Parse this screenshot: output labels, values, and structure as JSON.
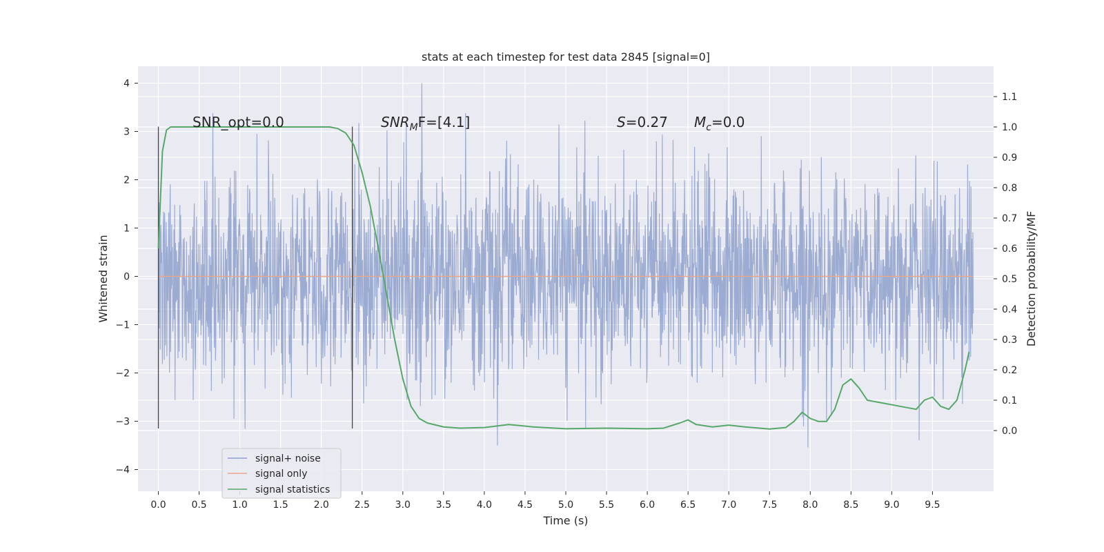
{
  "chart_data": {
    "type": "line",
    "title": "stats at each timestep for test data 2845 [signal=0]",
    "xlabel": "Time (s)",
    "ylabel_left": "Whitened strain",
    "ylabel_right": "Detection probability/MF",
    "xlim": [
      -0.25,
      10.25
    ],
    "ylim_left": [
      -4.45,
      4.35
    ],
    "ylim_right": [
      -0.2,
      1.2
    ],
    "x_ticks": [
      "0.0",
      "0.5",
      "1.0",
      "1.5",
      "2.0",
      "2.5",
      "3.0",
      "3.5",
      "4.0",
      "4.5",
      "5.0",
      "5.5",
      "6.0",
      "6.5",
      "7.0",
      "7.5",
      "8.0",
      "8.5",
      "9.0",
      "9.5"
    ],
    "y_ticks_left": [
      "−4",
      "−3",
      "−2",
      "−1",
      "0",
      "1",
      "2",
      "3",
      "4"
    ],
    "y_ticks_right": [
      "0.0",
      "0.1",
      "0.2",
      "0.3",
      "0.4",
      "0.5",
      "0.6",
      "0.7",
      "0.8",
      "0.9",
      "1.0",
      "1.1"
    ],
    "grid": true,
    "legend_position": "lower-left",
    "series": [
      {
        "name": "signal+ noise",
        "axis": "left",
        "color": "#8da0cb",
        "description_range": [
          -3.8,
          4.0
        ],
        "x_start": 0.0,
        "x_end": 10.0
      },
      {
        "name": "signal only",
        "axis": "left",
        "color": "#e9a88b",
        "x": [
          0.0,
          10.0
        ],
        "values": [
          0.0,
          0.0
        ]
      },
      {
        "name": "signal statistics",
        "axis": "right",
        "color": "#55a868",
        "x": [
          0.0,
          0.05,
          0.1,
          0.15,
          0.2,
          0.5,
          1.0,
          1.5,
          2.0,
          2.1,
          2.2,
          2.3,
          2.4,
          2.5,
          2.6,
          2.7,
          2.8,
          2.9,
          3.0,
          3.1,
          3.2,
          3.3,
          3.5,
          3.7,
          4.0,
          4.3,
          4.6,
          5.0,
          5.5,
          6.0,
          6.2,
          6.4,
          6.5,
          6.6,
          6.8,
          7.0,
          7.2,
          7.5,
          7.7,
          7.8,
          7.9,
          8.0,
          8.1,
          8.2,
          8.3,
          8.4,
          8.5,
          8.6,
          8.7,
          8.9,
          9.1,
          9.3,
          9.4,
          9.5,
          9.6,
          9.7,
          9.8,
          9.9,
          9.95
        ],
        "values": [
          0.6,
          0.92,
          0.99,
          1.0,
          1.0,
          1.0,
          1.0,
          1.0,
          1.0,
          1.0,
          0.995,
          0.98,
          0.94,
          0.85,
          0.74,
          0.6,
          0.45,
          0.3,
          0.17,
          0.08,
          0.04,
          0.025,
          0.012,
          0.008,
          0.01,
          0.02,
          0.012,
          0.006,
          0.008,
          0.006,
          0.008,
          0.025,
          0.035,
          0.02,
          0.012,
          0.018,
          0.012,
          0.005,
          0.01,
          0.03,
          0.06,
          0.04,
          0.03,
          0.03,
          0.07,
          0.15,
          0.17,
          0.14,
          0.1,
          0.09,
          0.08,
          0.07,
          0.1,
          0.11,
          0.08,
          0.07,
          0.1,
          0.2,
          0.26
        ]
      }
    ],
    "vertical_lines_x": [
      0.0,
      2.38
    ],
    "annotations": [
      {
        "text": "SNR_opt=0.0"
      },
      {
        "base": "SNR",
        "sub": "M",
        "rest": "F=[4.1]"
      },
      {
        "base": "S",
        "rest": "=0.27"
      },
      {
        "base": "M",
        "sub": "c",
        "rest": "=0.0"
      }
    ]
  }
}
